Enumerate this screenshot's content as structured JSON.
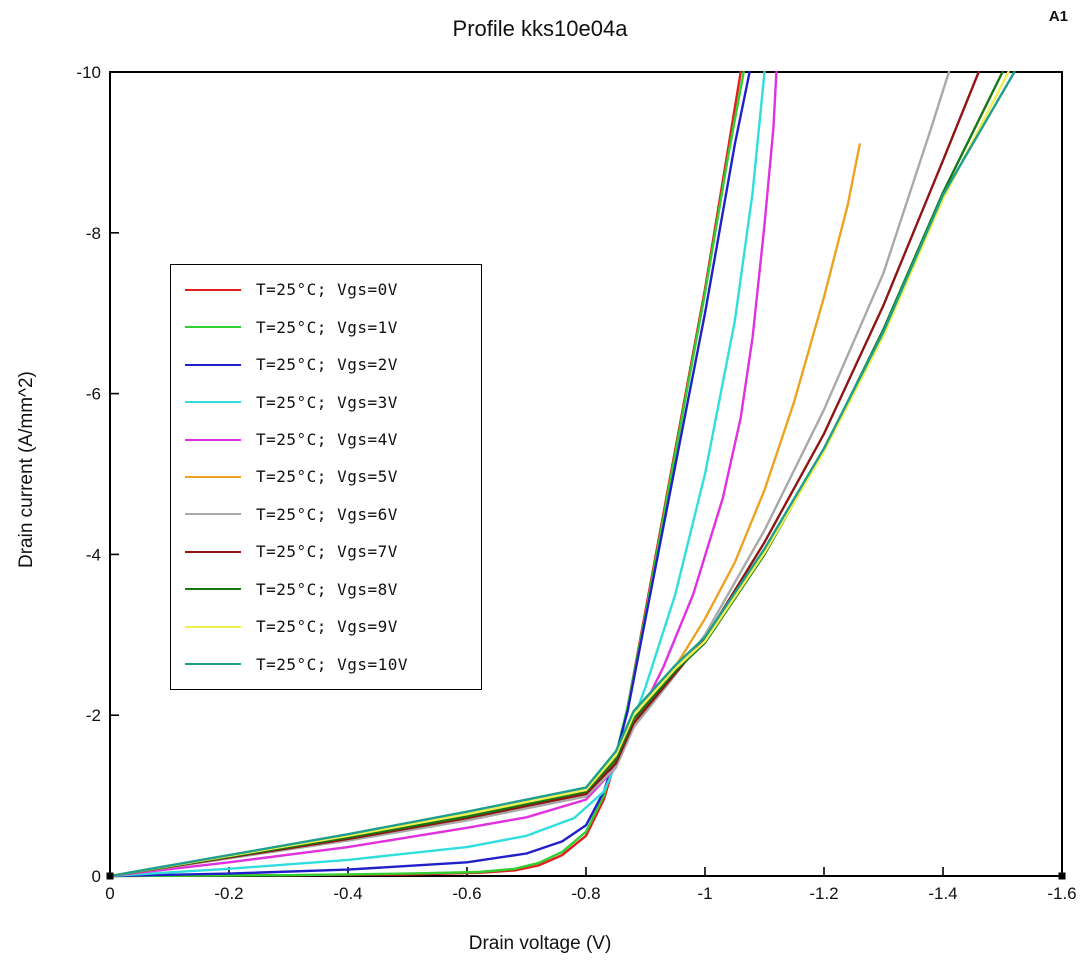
{
  "corner_label": "A1",
  "chart_data": {
    "type": "line",
    "title": "Profile kks10e04a",
    "xlabel": "Drain voltage (V)",
    "ylabel": "Drain current (A/mm^2)",
    "xlim": [
      0,
      -1.6
    ],
    "ylim": [
      0,
      -10
    ],
    "x_tick_values": [
      0,
      -0.2,
      -0.4,
      -0.6,
      -0.8,
      -1,
      -1.2,
      -1.4,
      -1.6
    ],
    "x_tick_labels": [
      "0",
      "-0.2",
      "-0.4",
      "-0.6",
      "-0.8",
      "-1",
      "-1.2",
      "-1.4",
      "-1.6"
    ],
    "y_tick_values": [
      0,
      -2,
      -4,
      -6,
      -8,
      -10
    ],
    "y_tick_labels": [
      "0",
      "-2",
      "-4",
      "-6",
      "-8",
      "-10"
    ],
    "grid": false,
    "legend_position": "upper-left-inside",
    "end_markers": [
      [
        0,
        0
      ],
      [
        -1.6,
        0
      ]
    ],
    "series": [
      {
        "name": "T=25°C; Vgs=0V",
        "color": "#e41e1e",
        "points": [
          [
            0,
            0
          ],
          [
            -0.3,
            -0.01
          ],
          [
            -0.5,
            -0.02
          ],
          [
            -0.62,
            -0.04
          ],
          [
            -0.68,
            -0.07
          ],
          [
            -0.72,
            -0.13
          ],
          [
            -0.76,
            -0.26
          ],
          [
            -0.8,
            -0.5
          ],
          [
            -0.83,
            -0.95
          ],
          [
            -0.85,
            -1.45
          ],
          [
            -0.87,
            -2.1
          ],
          [
            -0.9,
            -3.3
          ],
          [
            -0.95,
            -5.3
          ],
          [
            -1.0,
            -7.3
          ],
          [
            -1.04,
            -9.1
          ],
          [
            -1.06,
            -10
          ]
        ]
      },
      {
        "name": "T=25°C; Vgs=1V",
        "color": "#30d030",
        "points": [
          [
            0,
            0
          ],
          [
            -0.3,
            -0.01
          ],
          [
            -0.5,
            -0.03
          ],
          [
            -0.62,
            -0.05
          ],
          [
            -0.68,
            -0.09
          ],
          [
            -0.72,
            -0.16
          ],
          [
            -0.76,
            -0.3
          ],
          [
            -0.8,
            -0.55
          ],
          [
            -0.83,
            -1.0
          ],
          [
            -0.85,
            -1.5
          ],
          [
            -0.87,
            -2.1
          ],
          [
            -0.9,
            -3.25
          ],
          [
            -0.95,
            -5.25
          ],
          [
            -1.0,
            -7.25
          ],
          [
            -1.04,
            -9.0
          ],
          [
            -1.065,
            -10
          ]
        ]
      },
      {
        "name": "T=25°C; Vgs=2V",
        "color": "#2020c8",
        "points": [
          [
            0,
            0
          ],
          [
            -0.2,
            -0.03
          ],
          [
            -0.4,
            -0.08
          ],
          [
            -0.6,
            -0.17
          ],
          [
            -0.7,
            -0.28
          ],
          [
            -0.76,
            -0.43
          ],
          [
            -0.8,
            -0.63
          ],
          [
            -0.83,
            -1.05
          ],
          [
            -0.85,
            -1.5
          ],
          [
            -0.87,
            -2.05
          ],
          [
            -0.9,
            -3.2
          ],
          [
            -0.95,
            -5.1
          ],
          [
            -1.0,
            -7.0
          ],
          [
            -1.05,
            -9.1
          ],
          [
            -1.075,
            -10
          ]
        ]
      },
      {
        "name": "T=25°C; Vgs=3V",
        "color": "#30dede",
        "points": [
          [
            0,
            0
          ],
          [
            -0.2,
            -0.09
          ],
          [
            -0.4,
            -0.2
          ],
          [
            -0.6,
            -0.36
          ],
          [
            -0.7,
            -0.5
          ],
          [
            -0.78,
            -0.72
          ],
          [
            -0.83,
            -1.05
          ],
          [
            -0.86,
            -1.55
          ],
          [
            -0.9,
            -2.35
          ],
          [
            -0.95,
            -3.5
          ],
          [
            -1.0,
            -5.0
          ],
          [
            -1.05,
            -6.9
          ],
          [
            -1.08,
            -8.5
          ],
          [
            -1.1,
            -10
          ]
        ]
      },
      {
        "name": "T=25°C; Vgs=4V",
        "color": "#e030e0",
        "points": [
          [
            0,
            0
          ],
          [
            -0.2,
            -0.17
          ],
          [
            -0.4,
            -0.36
          ],
          [
            -0.6,
            -0.6
          ],
          [
            -0.7,
            -0.73
          ],
          [
            -0.8,
            -0.95
          ],
          [
            -0.85,
            -1.35
          ],
          [
            -0.88,
            -1.85
          ],
          [
            -0.93,
            -2.6
          ],
          [
            -0.98,
            -3.5
          ],
          [
            -1.03,
            -4.7
          ],
          [
            -1.06,
            -5.7
          ],
          [
            -1.08,
            -6.7
          ],
          [
            -1.1,
            -8.1
          ],
          [
            -1.115,
            -9.3
          ],
          [
            -1.12,
            -10
          ]
        ]
      },
      {
        "name": "T=25°C; Vgs=5V",
        "color": "#eda321",
        "points": [
          [
            0,
            0
          ],
          [
            -0.2,
            -0.22
          ],
          [
            -0.4,
            -0.45
          ],
          [
            -0.6,
            -0.72
          ],
          [
            -0.8,
            -1.05
          ],
          [
            -0.85,
            -1.42
          ],
          [
            -0.88,
            -1.87
          ],
          [
            -0.95,
            -2.6
          ],
          [
            -1.0,
            -3.2
          ],
          [
            -1.05,
            -3.9
          ],
          [
            -1.1,
            -4.8
          ],
          [
            -1.15,
            -5.9
          ],
          [
            -1.2,
            -7.2
          ],
          [
            -1.24,
            -8.35
          ],
          [
            -1.26,
            -9.1
          ]
        ]
      },
      {
        "name": "T=25°C; Vgs=6V",
        "color": "#a9a9a9",
        "points": [
          [
            0,
            0
          ],
          [
            -0.2,
            -0.22
          ],
          [
            -0.4,
            -0.44
          ],
          [
            -0.6,
            -0.69
          ],
          [
            -0.8,
            -0.99
          ],
          [
            -0.85,
            -1.35
          ],
          [
            -0.88,
            -1.85
          ],
          [
            -0.95,
            -2.5
          ],
          [
            -1.0,
            -3.0
          ],
          [
            -1.1,
            -4.3
          ],
          [
            -1.2,
            -5.8
          ],
          [
            -1.3,
            -7.5
          ],
          [
            -1.38,
            -9.3
          ],
          [
            -1.41,
            -10
          ]
        ]
      },
      {
        "name": "T=25°C; Vgs=7V",
        "color": "#8f1515",
        "points": [
          [
            0,
            0
          ],
          [
            -0.2,
            -0.23
          ],
          [
            -0.4,
            -0.46
          ],
          [
            -0.6,
            -0.72
          ],
          [
            -0.8,
            -1.02
          ],
          [
            -0.85,
            -1.4
          ],
          [
            -0.88,
            -1.9
          ],
          [
            -0.95,
            -2.52
          ],
          [
            -1.0,
            -2.95
          ],
          [
            -1.1,
            -4.15
          ],
          [
            -1.2,
            -5.5
          ],
          [
            -1.3,
            -7.1
          ],
          [
            -1.4,
            -8.9
          ],
          [
            -1.46,
            -10
          ]
        ]
      },
      {
        "name": "T=25°C; Vgs=8V",
        "color": "#157815",
        "points": [
          [
            0,
            0
          ],
          [
            -0.2,
            -0.24
          ],
          [
            -0.4,
            -0.48
          ],
          [
            -0.6,
            -0.74
          ],
          [
            -0.8,
            -1.05
          ],
          [
            -0.85,
            -1.45
          ],
          [
            -0.88,
            -1.95
          ],
          [
            -0.95,
            -2.55
          ],
          [
            -1.0,
            -2.9
          ],
          [
            -1.1,
            -4.0
          ],
          [
            -1.2,
            -5.3
          ],
          [
            -1.3,
            -6.8
          ],
          [
            -1.4,
            -8.5
          ],
          [
            -1.5,
            -10
          ]
        ]
      },
      {
        "name": "T=25°C; Vgs=9V",
        "color": "#f2ef4e",
        "points": [
          [
            0,
            0
          ],
          [
            -0.2,
            -0.25
          ],
          [
            -0.4,
            -0.5
          ],
          [
            -0.6,
            -0.77
          ],
          [
            -0.8,
            -1.07
          ],
          [
            -0.85,
            -1.5
          ],
          [
            -0.88,
            -2.0
          ],
          [
            -0.95,
            -2.58
          ],
          [
            -1.0,
            -2.92
          ],
          [
            -1.1,
            -4.02
          ],
          [
            -1.2,
            -5.28
          ],
          [
            -1.3,
            -6.72
          ],
          [
            -1.4,
            -8.42
          ],
          [
            -1.51,
            -10
          ]
        ]
      },
      {
        "name": "T=25°C; Vgs=10V",
        "color": "#1f9e8e",
        "points": [
          [
            0,
            0
          ],
          [
            -0.2,
            -0.26
          ],
          [
            -0.4,
            -0.52
          ],
          [
            -0.6,
            -0.8
          ],
          [
            -0.8,
            -1.1
          ],
          [
            -0.85,
            -1.55
          ],
          [
            -0.88,
            -2.05
          ],
          [
            -0.95,
            -2.62
          ],
          [
            -1.0,
            -2.97
          ],
          [
            -1.1,
            -4.07
          ],
          [
            -1.2,
            -5.32
          ],
          [
            -1.3,
            -6.77
          ],
          [
            -1.4,
            -8.47
          ],
          [
            -1.52,
            -10
          ]
        ]
      }
    ]
  }
}
